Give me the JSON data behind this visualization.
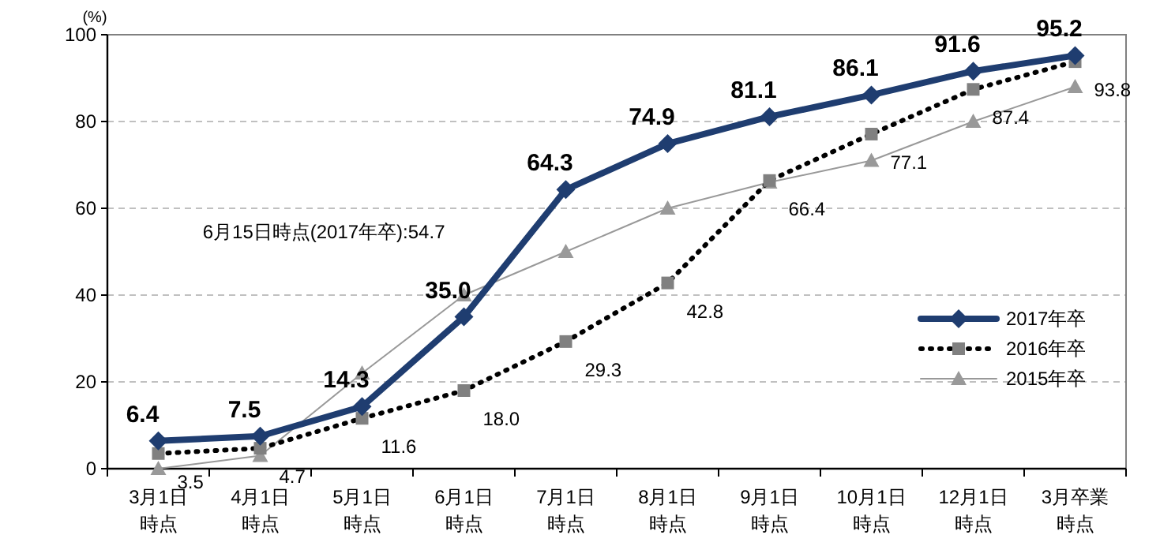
{
  "chart_data": {
    "type": "line",
    "ylabel": "(%)",
    "categories": [
      "3月1日時点",
      "4月1日時点",
      "5月1日時点",
      "6月1日時点",
      "7月1日時点",
      "8月1日時点",
      "9月1日時点",
      "10月1日時点",
      "12月1日時点",
      "3月卒業時点"
    ],
    "ylim": [
      0,
      100
    ],
    "yticks": [
      0,
      20,
      40,
      60,
      80,
      100
    ],
    "grid": "y",
    "legend": "bottom right",
    "series": [
      {
        "name": "2017年卒",
        "color": "#1f3d70",
        "marker": "diamond",
        "line_style": "solid",
        "values": [
          6.4,
          7.5,
          14.3,
          35.0,
          64.3,
          74.9,
          81.1,
          86.1,
          91.6,
          95.2
        ],
        "value_labels": [
          "6.4",
          "7.5",
          "14.3",
          "35.0",
          "64.3",
          "74.9",
          "81.1",
          "86.1",
          "91.6",
          "95.2"
        ]
      },
      {
        "name": "2016年卒",
        "color": "#000000",
        "marker": "square",
        "line_style": "dotted",
        "values": [
          3.5,
          4.7,
          11.6,
          18.0,
          29.3,
          42.8,
          66.4,
          77.1,
          87.4,
          93.8
        ],
        "value_labels": [
          "3.5",
          "4.7",
          "11.6",
          "18.0",
          "29.3",
          "42.8",
          "66.4",
          "77.1",
          "87.4",
          "93.8"
        ]
      },
      {
        "name": "2015年卒",
        "color": "#999999",
        "marker": "triangle",
        "line_style": "solid",
        "values": [
          0,
          3,
          22,
          40,
          50,
          60,
          66,
          71,
          80,
          88
        ]
      }
    ],
    "annotations": [
      "6月15日時点(2017年卒):54.7"
    ]
  }
}
